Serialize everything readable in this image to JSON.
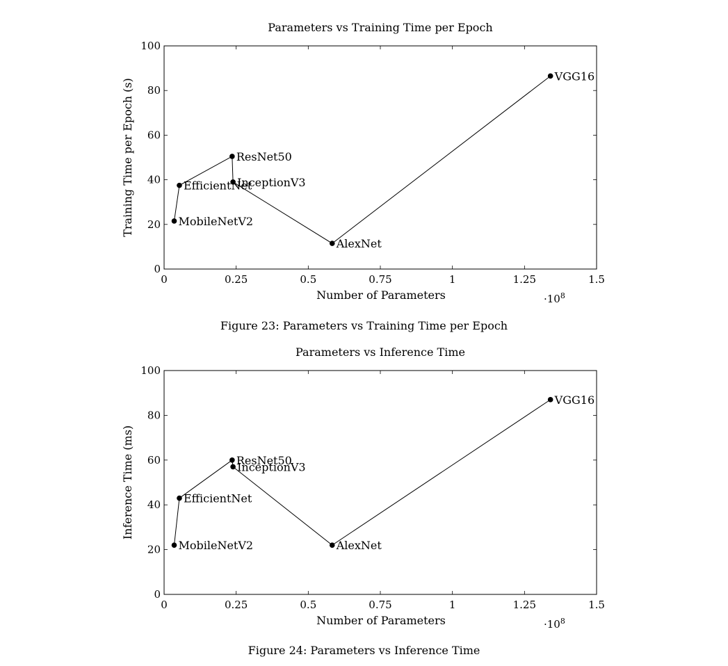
{
  "figures": [
    {
      "caption": "Figure 23: Parameters vs Training Time per Epoch"
    },
    {
      "caption": "Figure 24: Parameters vs Inference Time"
    }
  ],
  "chart_data": [
    {
      "type": "line",
      "title": "Parameters vs Training Time per Epoch",
      "xlabel": "Number of Parameters",
      "ylabel": "Training Time per Epoch (s)",
      "x_multiplier": "·10",
      "x_multiplier_exp": "8",
      "xlim": [
        0,
        1.5
      ],
      "ylim": [
        0,
        100
      ],
      "xticks": [
        0,
        0.25,
        0.5,
        0.75,
        1,
        1.25,
        1.5
      ],
      "xtick_labels": [
        "0",
        "0.25",
        "0.5",
        "0.75",
        "1",
        "1.25",
        "1.5"
      ],
      "yticks": [
        0,
        20,
        40,
        60,
        80,
        100
      ],
      "ytick_labels": [
        "0",
        "20",
        "40",
        "60",
        "80",
        "100"
      ],
      "grid": false,
      "points": [
        {
          "label": "MobileNetV2",
          "x": 0.035,
          "y": 21.5
        },
        {
          "label": "EfficientNet",
          "x": 0.053,
          "y": 37.5
        },
        {
          "label": "ResNet50",
          "x": 0.236,
          "y": 50.5
        },
        {
          "label": "InceptionV3",
          "x": 0.239,
          "y": 39.0
        },
        {
          "label": "AlexNet",
          "x": 0.583,
          "y": 11.5
        },
        {
          "label": "VGG16",
          "x": 1.34,
          "y": 86.5
        }
      ]
    },
    {
      "type": "line",
      "title": "Parameters vs Inference Time",
      "xlabel": "Number of Parameters",
      "ylabel": "Inference Time (ms)",
      "x_multiplier": "·10",
      "x_multiplier_exp": "8",
      "xlim": [
        0,
        1.5
      ],
      "ylim": [
        0,
        100
      ],
      "xticks": [
        0,
        0.25,
        0.5,
        0.75,
        1,
        1.25,
        1.5
      ],
      "xtick_labels": [
        "0",
        "0.25",
        "0.5",
        "0.75",
        "1",
        "1.25",
        "1.5"
      ],
      "yticks": [
        0,
        20,
        40,
        60,
        80,
        100
      ],
      "ytick_labels": [
        "0",
        "20",
        "40",
        "60",
        "80",
        "100"
      ],
      "grid": false,
      "points": [
        {
          "label": "MobileNetV2",
          "x": 0.035,
          "y": 22.0
        },
        {
          "label": "EfficientNet",
          "x": 0.053,
          "y": 43.0
        },
        {
          "label": "ResNet50",
          "x": 0.236,
          "y": 60.0
        },
        {
          "label": "InceptionV3",
          "x": 0.239,
          "y": 57.0
        },
        {
          "label": "AlexNet",
          "x": 0.583,
          "y": 22.0
        },
        {
          "label": "VGG16",
          "x": 1.34,
          "y": 87.0
        }
      ]
    }
  ]
}
